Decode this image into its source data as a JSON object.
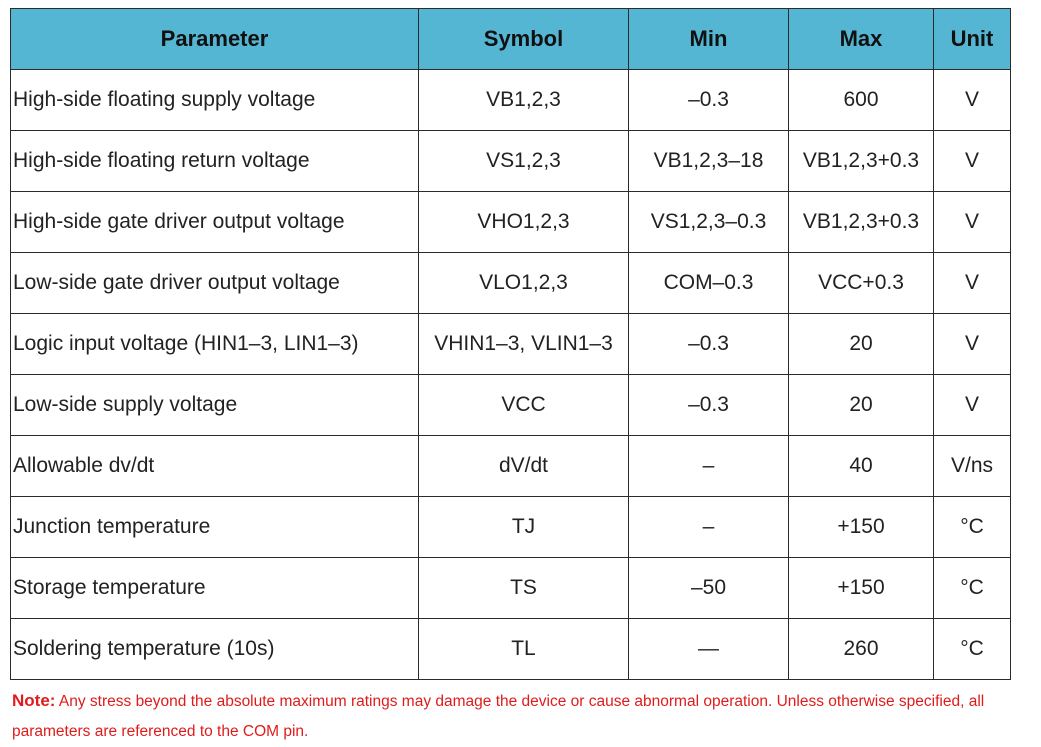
{
  "table": {
    "headers": [
      "Parameter",
      "Symbol",
      "Min",
      "Max",
      "Unit"
    ],
    "rows": [
      [
        "High-side floating supply voltage",
        "VB1,2,3",
        "–0.3",
        "600",
        "V"
      ],
      [
        "High-side floating return voltage",
        "VS1,2,3",
        "VB1,2,3–18",
        "VB1,2,3+0.3",
        "V"
      ],
      [
        "High-side gate driver output voltage",
        "VHO1,2,3",
        "VS1,2,3–0.3",
        "VB1,2,3+0.3",
        "V"
      ],
      [
        "Low-side gate driver output voltage",
        "VLO1,2,3",
        "COM–0.3",
        "VCC+0.3",
        "V"
      ],
      [
        "Logic input voltage (HIN1–3, LIN1–3)",
        "VHIN1–3, VLIN1–3",
        "–0.3",
        "20",
        "V"
      ],
      [
        "Low-side supply voltage",
        "VCC",
        "–0.3",
        "20",
        "V"
      ],
      [
        "Allowable dv/dt",
        "dV/dt",
        "–",
        "40",
        "V/ns"
      ],
      [
        "Junction temperature",
        "TJ",
        "–",
        "+150",
        "°C"
      ],
      [
        "Storage temperature",
        "TS",
        "–50",
        "+150",
        "°C"
      ],
      [
        "Soldering temperature (10s)",
        "TL",
        "—",
        "260",
        "°C"
      ]
    ]
  },
  "note": {
    "label": "Note:",
    "text": " Any stress beyond the absolute maximum ratings may damage the device or cause abnormal operation. Unless otherwise specified, all parameters are referenced to the COM pin."
  },
  "colors": {
    "header_bg": "#55b6d3",
    "note": "#e01b1b"
  }
}
